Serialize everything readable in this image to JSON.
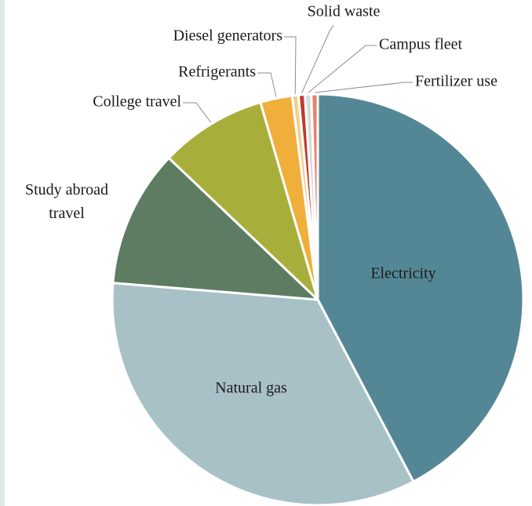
{
  "chart_data": {
    "type": "pie",
    "categories": [
      "Electricity",
      "Natural gas",
      "Study abroad travel",
      "College travel",
      "Refrigerants",
      "Diesel generators",
      "Solid waste",
      "Campus fleet",
      "Fertilizer use"
    ],
    "values": [
      42.3,
      34,
      10.8,
      8.4,
      2.5,
      0.5,
      0.5,
      0.5,
      0.5
    ],
    "colors": [
      "#548795",
      "#a8c1c7",
      "#5e7c62",
      "#a8ae3a",
      "#f0ae3a",
      "#f3cf8e",
      "#c0392b",
      "#d9d9d9",
      "#e8826a"
    ]
  }
}
